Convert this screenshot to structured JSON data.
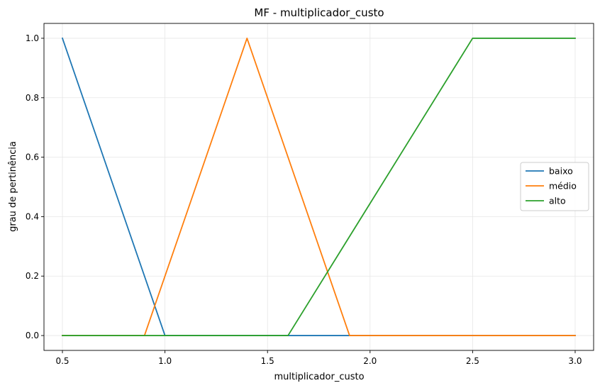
{
  "chart_data": {
    "type": "line",
    "title": "MF - multiplicador_custo",
    "xlabel": "multiplicador_custo",
    "ylabel": "grau de pertinência",
    "xlim": [
      0.41,
      3.09
    ],
    "ylim": [
      -0.05,
      1.05
    ],
    "xticks": [
      "0.5",
      "1.0",
      "1.5",
      "2.0",
      "2.5",
      "3.0"
    ],
    "yticks": [
      "0.0",
      "0.2",
      "0.4",
      "0.6",
      "0.8",
      "1.0"
    ],
    "grid": true,
    "legend_position": "center-right",
    "series": [
      {
        "name": "baixo",
        "color": "#1f77b4",
        "x": [
          0.5,
          1.0,
          3.0
        ],
        "y": [
          1.0,
          0.0,
          0.0
        ]
      },
      {
        "name": "médio",
        "color": "#ff7f0e",
        "x": [
          0.5,
          0.9,
          1.4,
          1.9,
          3.0
        ],
        "y": [
          0.0,
          0.0,
          1.0,
          0.0,
          0.0
        ]
      },
      {
        "name": "alto",
        "color": "#2ca02c",
        "x": [
          0.5,
          1.6,
          2.5,
          3.0
        ],
        "y": [
          0.0,
          0.0,
          1.0,
          1.0
        ]
      }
    ]
  }
}
